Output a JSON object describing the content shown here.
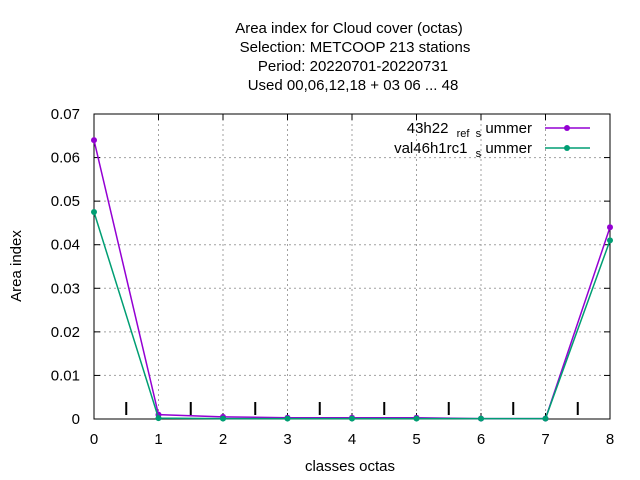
{
  "chart_data": {
    "type": "line",
    "title_lines": [
      "Area index  for Cloud cover (octas)",
      "Selection: METCOOP    213 stations",
      "Period: 20220701-20220731",
      "Used  00,06,12,18  + 03 06 ... 48"
    ],
    "xlabel": "classes octas",
    "ylabel": "Area index",
    "xlim": [
      0,
      8
    ],
    "ylim": [
      0,
      0.07
    ],
    "x_ticks": [
      "0",
      "1",
      "2",
      "3",
      "4",
      "5",
      "6",
      "7",
      "8"
    ],
    "y_ticks": [
      "0",
      "0.01",
      "0.02",
      "0.03",
      "0.04",
      "0.05",
      "0.06",
      "0.07"
    ],
    "grid": true,
    "legend_position": "top-right",
    "x": [
      0,
      1,
      2,
      3,
      4,
      5,
      6,
      7,
      8
    ],
    "series": [
      {
        "legend_main": "43h22",
        "legend_sub1": "ref",
        "legend_sub2": "s",
        "legend_tail": "ummer",
        "color": "#9400d3",
        "values": [
          0.064,
          0.001,
          0.0005,
          0.0003,
          0.0003,
          0.0003,
          0.0001,
          0.0001,
          0.044
        ]
      },
      {
        "legend_main": "val46h1rc1",
        "legend_sub1": "",
        "legend_sub2": "s",
        "legend_tail": "ummer",
        "color": "#009e73",
        "values": [
          0.0475,
          0.0002,
          0.0001,
          0.0001,
          0.0001,
          0.0001,
          0.0001,
          0.0001,
          0.041
        ]
      }
    ],
    "bar_ticks_x": [
      0.5,
      1.5,
      2.5,
      3.5,
      4.5,
      5.5,
      6.5,
      7.5
    ]
  }
}
